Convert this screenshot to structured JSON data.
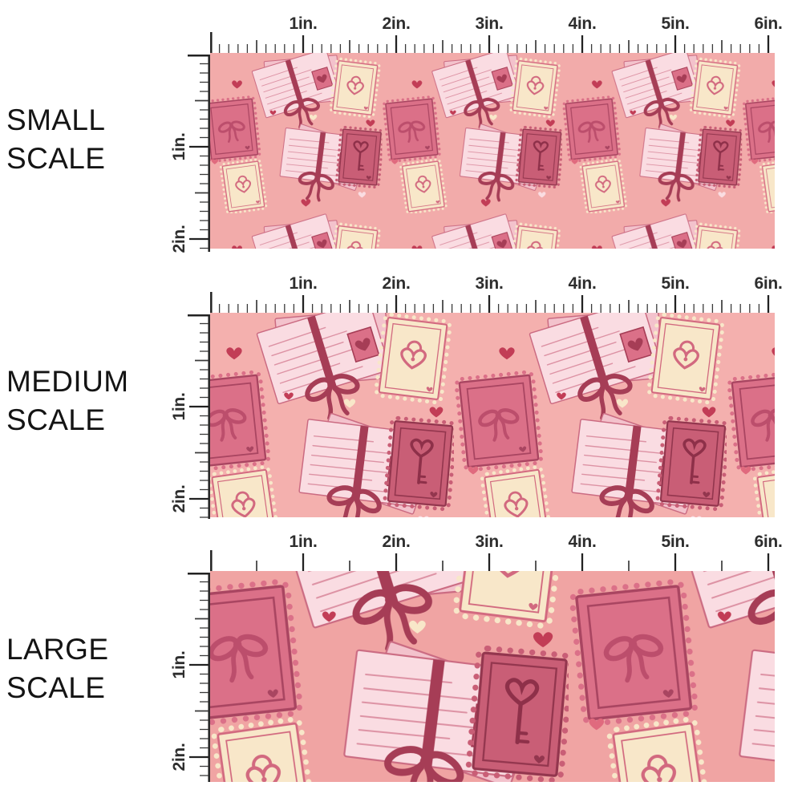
{
  "rows": [
    {
      "name": "small",
      "label_lines": [
        "SMALL",
        "SCALE"
      ],
      "swatch_background": "#f2abaa",
      "pattern_scale": 0.66,
      "pattern_offset": [
        -10,
        -6
      ],
      "h_minor_per_inch": 10
    },
    {
      "name": "medium",
      "label_lines": [
        "MEDIUM",
        "SCALE"
      ],
      "swatch_background": "#f4b0ae",
      "pattern_scale": 1.0,
      "pattern_offset": [
        -36,
        -18
      ],
      "h_minor_per_inch": 10
    },
    {
      "name": "large",
      "label_lines": [
        "LARGE",
        "SCALE"
      ],
      "swatch_background": "#f0a4a3",
      "pattern_scale": 1.45,
      "pattern_offset": [
        -46,
        -120
      ],
      "h_minor_per_inch": 2
    }
  ],
  "ruler": {
    "horizontal_labels": [
      "1in.",
      "2in.",
      "3in.",
      "4in.",
      "5in.",
      "6in."
    ],
    "vertical_labels": [
      "1in.",
      "2in."
    ],
    "unit": "in."
  },
  "pattern": {
    "name": "valentine-love-letters-and-stamps",
    "motifs": [
      "letter-bundle-with-maroon-bow",
      "rose-stamp-with-bow",
      "cream-stamp-with-heart-padlock",
      "deep-rose-stamp-with-heart-key",
      "scattered-hearts"
    ],
    "colors": {
      "letter_paper": "#fadce2",
      "letter_paper_back": "#f3c2cc",
      "letter_lines": "#dd92a4",
      "letter_outline": "#cb6b82",
      "ribbon": "#a63d56",
      "stamp_rose": "#db7088",
      "stamp_rose_border": "#a94561",
      "stamp_bow_color": "#bc4e6c",
      "stamp_deep": "#c95e76",
      "stamp_deep_border": "#93364e",
      "key_color": "#8e3049",
      "stamp_cream": "#f8e7c9",
      "stamp_cream_border": "#d2697f",
      "heart_red": "#c23d56",
      "heart_mid": "#e06a7e",
      "heart_cream": "#f8e7c9",
      "heart_pale": "#fadde2"
    }
  },
  "ui": {
    "tick_color": "#3a3a3a",
    "inch_tick_color": "#222222",
    "inch_label_color": "#2e2e2e",
    "scale_label_color": "#141414"
  }
}
